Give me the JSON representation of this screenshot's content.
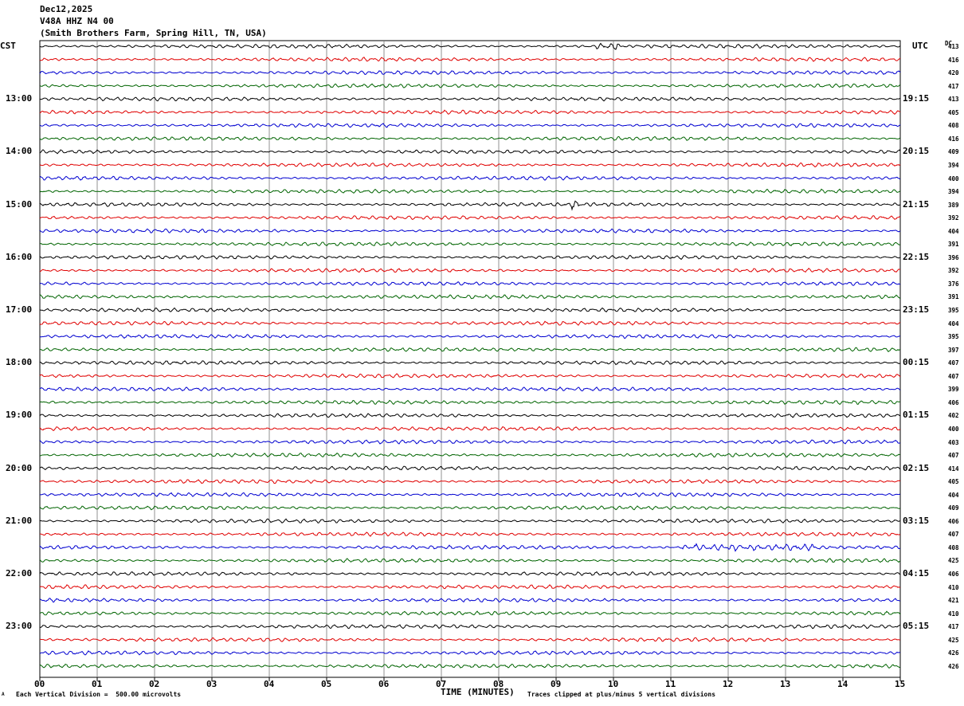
{
  "header": {
    "date": "Dec12,2025",
    "station": "V48A HHZ N4 00",
    "location": "(Smith Brothers Farm, Spring Hill, TN, USA)"
  },
  "left_tz": "CST",
  "right_tz": "UTC",
  "dc_header": "DC",
  "footer": {
    "scale_note": "Each Vertical Division =  500.00 microvolts",
    "clip_note": "Traces clipped at plus/minus 5 vertical divisions",
    "corner_mark": "A"
  },
  "colors": {
    "trace_cycle": [
      "#000000",
      "#e00000",
      "#0000d0",
      "#006400"
    ],
    "grid": "#000000"
  },
  "chart_data": {
    "type": "line",
    "xlabel": "TIME (MINUTES)",
    "x_ticks": [
      "00",
      "01",
      "02",
      "03",
      "04",
      "05",
      "06",
      "07",
      "08",
      "09",
      "10",
      "11",
      "12",
      "13",
      "14",
      "15"
    ],
    "xlim": [
      0,
      15
    ],
    "left_hour_labels": [
      {
        "row": 4,
        "text": "13:00"
      },
      {
        "row": 8,
        "text": "14:00"
      },
      {
        "row": 12,
        "text": "15:00"
      },
      {
        "row": 16,
        "text": "16:00"
      },
      {
        "row": 20,
        "text": "17:00"
      },
      {
        "row": 24,
        "text": "18:00"
      },
      {
        "row": 28,
        "text": "19:00"
      },
      {
        "row": 32,
        "text": "20:00"
      },
      {
        "row": 36,
        "text": "21:00"
      },
      {
        "row": 40,
        "text": "22:00"
      },
      {
        "row": 44,
        "text": "23:00"
      }
    ],
    "right_hour_labels": [
      {
        "row": 4,
        "text": "19:15"
      },
      {
        "row": 8,
        "text": "20:15"
      },
      {
        "row": 12,
        "text": "21:15"
      },
      {
        "row": 16,
        "text": "22:15"
      },
      {
        "row": 20,
        "text": "23:15"
      },
      {
        "row": 24,
        "text": "00:15"
      },
      {
        "row": 28,
        "text": "01:15"
      },
      {
        "row": 32,
        "text": "02:15"
      },
      {
        "row": 36,
        "text": "03:15"
      },
      {
        "row": 40,
        "text": "04:15"
      },
      {
        "row": 44,
        "text": "05:15"
      }
    ],
    "dc_offsets": [
      "413",
      "416",
      "420",
      "417",
      "413",
      "405",
      "408",
      "416",
      "409",
      "394",
      "400",
      "394",
      "389",
      "392",
      "404",
      "391",
      "396",
      "392",
      "376",
      "391",
      "395",
      "404",
      "395",
      "397",
      "407",
      "407",
      "399",
      "406",
      "402",
      "400",
      "403",
      "407",
      "414",
      "405",
      "404",
      "409",
      "406",
      "407",
      "408",
      "425",
      "406",
      "410",
      "421",
      "410",
      "417",
      "425",
      "426",
      "426"
    ],
    "events": [
      {
        "row": 0,
        "from_min": 9.7,
        "to_min": 10.1,
        "amp": 3.5
      },
      {
        "row": 12,
        "from_min": 9.25,
        "to_min": 9.4,
        "amp": 3.0
      },
      {
        "row": 38,
        "from_min": 11.2,
        "to_min": 13.6,
        "amp": 3.2
      }
    ]
  }
}
